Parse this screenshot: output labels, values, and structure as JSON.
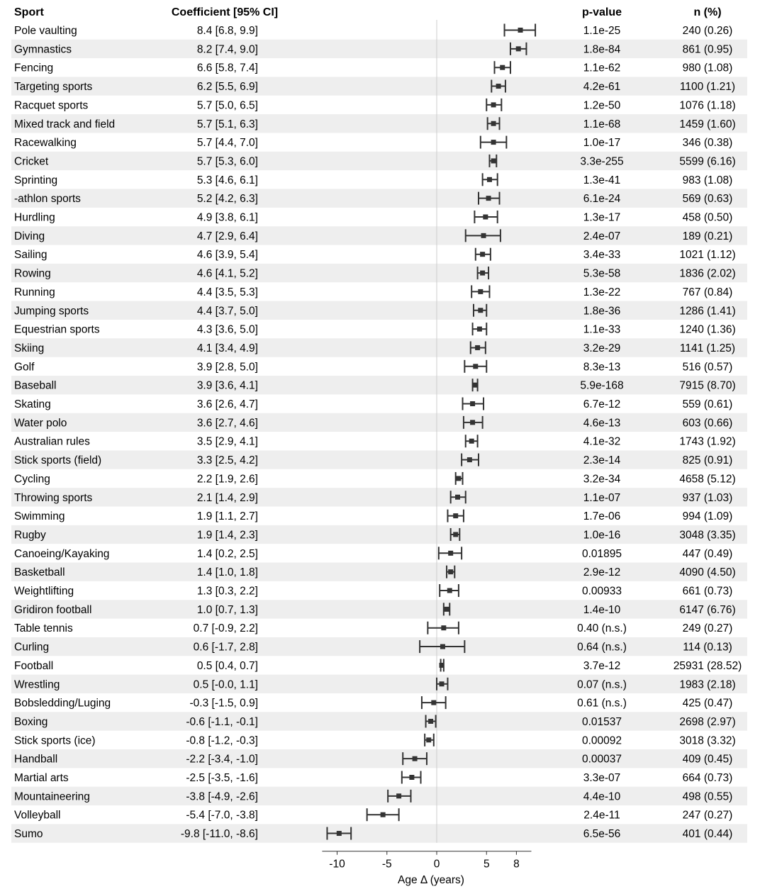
{
  "colors": {
    "stripe": "#eeeeee",
    "ink": "#333333",
    "zero_line": "#cccccc"
  },
  "chart_data": {
    "type": "forest",
    "headers": {
      "sport": "Sport",
      "coef": "Coefficient [95% CI]",
      "p": "p-value",
      "n": "n (%)"
    },
    "xlabel": "Age Δ (years)",
    "xticks": [
      -10,
      -5,
      0,
      5,
      8
    ],
    "xlim": [
      -11.5,
      9.5
    ],
    "zero_line": true,
    "rows": [
      {
        "sport": "Pole vaulting",
        "coef_text": "8.4 [6.8, 9.9]",
        "est": 8.4,
        "lo": 6.8,
        "hi": 9.9,
        "p": "1.1e-25",
        "n": "240 (0.26)"
      },
      {
        "sport": "Gymnastics",
        "coef_text": "8.2 [7.4, 9.0]",
        "est": 8.2,
        "lo": 7.4,
        "hi": 9.0,
        "p": "1.8e-84",
        "n": "861 (0.95)"
      },
      {
        "sport": "Fencing",
        "coef_text": "6.6 [5.8, 7.4]",
        "est": 6.6,
        "lo": 5.8,
        "hi": 7.4,
        "p": "1.1e-62",
        "n": "980 (1.08)"
      },
      {
        "sport": "Targeting sports",
        "coef_text": "6.2 [5.5, 6.9]",
        "est": 6.2,
        "lo": 5.5,
        "hi": 6.9,
        "p": "4.2e-61",
        "n": "1100 (1.21)"
      },
      {
        "sport": "Racquet sports",
        "coef_text": "5.7 [5.0, 6.5]",
        "est": 5.7,
        "lo": 5.0,
        "hi": 6.5,
        "p": "1.2e-50",
        "n": "1076 (1.18)"
      },
      {
        "sport": "Mixed track and field",
        "coef_text": "5.7 [5.1, 6.3]",
        "est": 5.7,
        "lo": 5.1,
        "hi": 6.3,
        "p": "1.1e-68",
        "n": "1459 (1.60)"
      },
      {
        "sport": "Racewalking",
        "coef_text": "5.7 [4.4, 7.0]",
        "est": 5.7,
        "lo": 4.4,
        "hi": 7.0,
        "p": "1.0e-17",
        "n": "346 (0.38)"
      },
      {
        "sport": "Cricket",
        "coef_text": "5.7 [5.3, 6.0]",
        "est": 5.7,
        "lo": 5.3,
        "hi": 6.0,
        "p": "3.3e-255",
        "n": "5599 (6.16)"
      },
      {
        "sport": "Sprinting",
        "coef_text": "5.3 [4.6, 6.1]",
        "est": 5.3,
        "lo": 4.6,
        "hi": 6.1,
        "p": "1.3e-41",
        "n": "983 (1.08)"
      },
      {
        "sport": "-athlon sports",
        "coef_text": "5.2 [4.2, 6.3]",
        "est": 5.2,
        "lo": 4.2,
        "hi": 6.3,
        "p": "6.1e-24",
        "n": "569 (0.63)"
      },
      {
        "sport": "Hurdling",
        "coef_text": "4.9 [3.8, 6.1]",
        "est": 4.9,
        "lo": 3.8,
        "hi": 6.1,
        "p": "1.3e-17",
        "n": "458 (0.50)"
      },
      {
        "sport": "Diving",
        "coef_text": "4.7 [2.9, 6.4]",
        "est": 4.7,
        "lo": 2.9,
        "hi": 6.4,
        "p": "2.4e-07",
        "n": "189 (0.21)"
      },
      {
        "sport": "Sailing",
        "coef_text": "4.6 [3.9, 5.4]",
        "est": 4.6,
        "lo": 3.9,
        "hi": 5.4,
        "p": "3.4e-33",
        "n": "1021 (1.12)"
      },
      {
        "sport": "Rowing",
        "coef_text": "4.6 [4.1, 5.2]",
        "est": 4.6,
        "lo": 4.1,
        "hi": 5.2,
        "p": "5.3e-58",
        "n": "1836 (2.02)"
      },
      {
        "sport": "Running",
        "coef_text": "4.4 [3.5, 5.3]",
        "est": 4.4,
        "lo": 3.5,
        "hi": 5.3,
        "p": "1.3e-22",
        "n": "767 (0.84)"
      },
      {
        "sport": "Jumping sports",
        "coef_text": "4.4 [3.7, 5.0]",
        "est": 4.4,
        "lo": 3.7,
        "hi": 5.0,
        "p": "1.8e-36",
        "n": "1286 (1.41)"
      },
      {
        "sport": "Equestrian sports",
        "coef_text": "4.3 [3.6, 5.0]",
        "est": 4.3,
        "lo": 3.6,
        "hi": 5.0,
        "p": "1.1e-33",
        "n": "1240 (1.36)"
      },
      {
        "sport": "Skiing",
        "coef_text": "4.1 [3.4, 4.9]",
        "est": 4.1,
        "lo": 3.4,
        "hi": 4.9,
        "p": "3.2e-29",
        "n": "1141 (1.25)"
      },
      {
        "sport": "Golf",
        "coef_text": "3.9 [2.8, 5.0]",
        "est": 3.9,
        "lo": 2.8,
        "hi": 5.0,
        "p": "8.3e-13",
        "n": "516 (0.57)"
      },
      {
        "sport": "Baseball",
        "coef_text": "3.9 [3.6, 4.1]",
        "est": 3.9,
        "lo": 3.6,
        "hi": 4.1,
        "p": "5.9e-168",
        "n": "7915 (8.70)"
      },
      {
        "sport": "Skating",
        "coef_text": "3.6 [2.6, 4.7]",
        "est": 3.6,
        "lo": 2.6,
        "hi": 4.7,
        "p": "6.7e-12",
        "n": "559 (0.61)"
      },
      {
        "sport": "Water polo",
        "coef_text": "3.6 [2.7, 4.6]",
        "est": 3.6,
        "lo": 2.7,
        "hi": 4.6,
        "p": "4.6e-13",
        "n": "603 (0.66)"
      },
      {
        "sport": "Australian rules",
        "coef_text": "3.5 [2.9, 4.1]",
        "est": 3.5,
        "lo": 2.9,
        "hi": 4.1,
        "p": "4.1e-32",
        "n": "1743 (1.92)"
      },
      {
        "sport": "Stick sports (field)",
        "coef_text": "3.3 [2.5, 4.2]",
        "est": 3.3,
        "lo": 2.5,
        "hi": 4.2,
        "p": "2.3e-14",
        "n": "825 (0.91)"
      },
      {
        "sport": "Cycling",
        "coef_text": "2.2 [1.9, 2.6]",
        "est": 2.2,
        "lo": 1.9,
        "hi": 2.6,
        "p": "3.2e-34",
        "n": "4658 (5.12)"
      },
      {
        "sport": "Throwing sports",
        "coef_text": "2.1 [1.4, 2.9]",
        "est": 2.1,
        "lo": 1.4,
        "hi": 2.9,
        "p": "1.1e-07",
        "n": "937 (1.03)"
      },
      {
        "sport": "Swimming",
        "coef_text": "1.9 [1.1, 2.7]",
        "est": 1.9,
        "lo": 1.1,
        "hi": 2.7,
        "p": "1.7e-06",
        "n": "994 (1.09)"
      },
      {
        "sport": "Rugby",
        "coef_text": "1.9 [1.4, 2.3]",
        "est": 1.9,
        "lo": 1.4,
        "hi": 2.3,
        "p": "1.0e-16",
        "n": "3048 (3.35)"
      },
      {
        "sport": "Canoeing/Kayaking",
        "coef_text": "1.4 [0.2, 2.5]",
        "est": 1.4,
        "lo": 0.2,
        "hi": 2.5,
        "p": "0.01895",
        "n": "447 (0.49)"
      },
      {
        "sport": "Basketball",
        "coef_text": "1.4 [1.0, 1.8]",
        "est": 1.4,
        "lo": 1.0,
        "hi": 1.8,
        "p": "2.9e-12",
        "n": "4090 (4.50)"
      },
      {
        "sport": "Weightlifting",
        "coef_text": "1.3 [0.3, 2.2]",
        "est": 1.3,
        "lo": 0.3,
        "hi": 2.2,
        "p": "0.00933",
        "n": "661 (0.73)"
      },
      {
        "sport": "Gridiron football",
        "coef_text": "1.0 [0.7, 1.3]",
        "est": 1.0,
        "lo": 0.7,
        "hi": 1.3,
        "p": "1.4e-10",
        "n": "6147 (6.76)"
      },
      {
        "sport": "Table tennis",
        "coef_text": "0.7 [-0.9, 2.2]",
        "est": 0.7,
        "lo": -0.9,
        "hi": 2.2,
        "p": "0.40 (n.s.)",
        "n": "249 (0.27)"
      },
      {
        "sport": "Curling",
        "coef_text": "0.6 [-1.7, 2.8]",
        "est": 0.6,
        "lo": -1.7,
        "hi": 2.8,
        "p": "0.64 (n.s.)",
        "n": "114 (0.13)"
      },
      {
        "sport": "Football",
        "coef_text": "0.5 [0.4, 0.7]",
        "est": 0.5,
        "lo": 0.4,
        "hi": 0.7,
        "p": "3.7e-12",
        "n": "25931 (28.52)"
      },
      {
        "sport": "Wrestling",
        "coef_text": "0.5 [-0.0, 1.1]",
        "est": 0.5,
        "lo": 0.0,
        "hi": 1.1,
        "p": "0.07 (n.s.)",
        "n": "1983 (2.18)"
      },
      {
        "sport": "Bobsledding/Luging",
        "coef_text": "-0.3 [-1.5, 0.9]",
        "est": -0.3,
        "lo": -1.5,
        "hi": 0.9,
        "p": "0.61 (n.s.)",
        "n": "425 (0.47)"
      },
      {
        "sport": "Boxing",
        "coef_text": "-0.6 [-1.1, -0.1]",
        "est": -0.6,
        "lo": -1.1,
        "hi": -0.1,
        "p": "0.01537",
        "n": "2698 (2.97)"
      },
      {
        "sport": "Stick sports (ice)",
        "coef_text": "-0.8 [-1.2, -0.3]",
        "est": -0.8,
        "lo": -1.2,
        "hi": -0.3,
        "p": "0.00092",
        "n": "3018 (3.32)"
      },
      {
        "sport": "Handball",
        "coef_text": "-2.2 [-3.4, -1.0]",
        "est": -2.2,
        "lo": -3.4,
        "hi": -1.0,
        "p": "0.00037",
        "n": "409 (0.45)"
      },
      {
        "sport": "Martial arts",
        "coef_text": "-2.5 [-3.5, -1.6]",
        "est": -2.5,
        "lo": -3.5,
        "hi": -1.6,
        "p": "3.3e-07",
        "n": "664 (0.73)"
      },
      {
        "sport": "Mountaineering",
        "coef_text": "-3.8 [-4.9, -2.6]",
        "est": -3.8,
        "lo": -4.9,
        "hi": -2.6,
        "p": "4.4e-10",
        "n": "498 (0.55)"
      },
      {
        "sport": "Volleyball",
        "coef_text": "-5.4 [-7.0, -3.8]",
        "est": -5.4,
        "lo": -7.0,
        "hi": -3.8,
        "p": "2.4e-11",
        "n": "247 (0.27)"
      },
      {
        "sport": "Sumo",
        "coef_text": "-9.8 [-11.0, -8.6]",
        "est": -9.8,
        "lo": -11.0,
        "hi": -8.6,
        "p": "6.5e-56",
        "n": "401 (0.44)"
      }
    ]
  }
}
